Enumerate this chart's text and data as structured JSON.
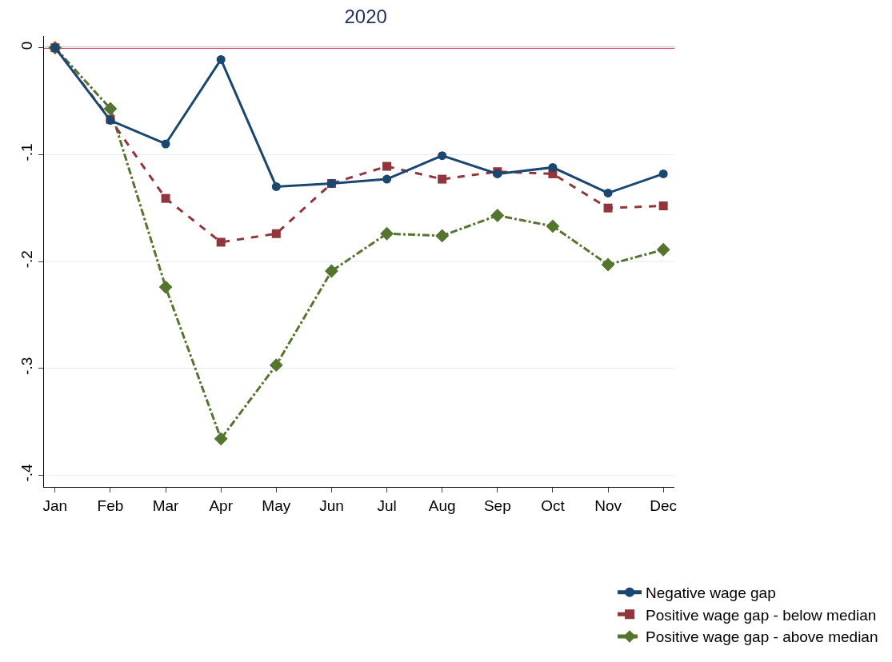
{
  "chart_data": {
    "type": "line",
    "title": "2020",
    "categories": [
      "Jan",
      "Feb",
      "Mar",
      "Apr",
      "May",
      "Jun",
      "Jul",
      "Aug",
      "Sep",
      "Oct",
      "Nov",
      "Dec"
    ],
    "series": [
      {
        "name": "Negative wage gap",
        "color": "#1a476f",
        "marker": "circle",
        "line_style": "solid",
        "values": [
          0,
          -0.068,
          -0.09,
          -0.011,
          -0.13,
          -0.127,
          -0.123,
          -0.101,
          -0.118,
          -0.112,
          -0.136,
          -0.118
        ]
      },
      {
        "name": "Positive wage gap - below median",
        "color": "#90353b",
        "marker": "square",
        "line_style": "dashed",
        "values": [
          0,
          -0.067,
          -0.141,
          -0.182,
          -0.174,
          -0.127,
          -0.111,
          -0.123,
          -0.116,
          -0.118,
          -0.15,
          -0.148
        ]
      },
      {
        "name": "Positive wage gap - above median",
        "color": "#55752f",
        "marker": "diamond",
        "line_style": "dashdot",
        "values": [
          0,
          -0.057,
          -0.224,
          -0.366,
          -0.297,
          -0.209,
          -0.174,
          -0.176,
          -0.157,
          -0.167,
          -0.203,
          -0.189
        ]
      }
    ],
    "ylim": [
      -0.411,
      0.011
    ],
    "yticks": [
      {
        "value": 0,
        "label": "0"
      },
      {
        "value": -0.1,
        "label": "-.1"
      },
      {
        "value": -0.2,
        "label": "-.2"
      },
      {
        "value": -0.3,
        "label": "-.3"
      },
      {
        "value": -0.4,
        "label": "-.4"
      }
    ],
    "ref_lines": [
      {
        "axis": "y",
        "value": 0,
        "color": "#c10534"
      }
    ],
    "grid": "y",
    "legend": "bottom right"
  }
}
